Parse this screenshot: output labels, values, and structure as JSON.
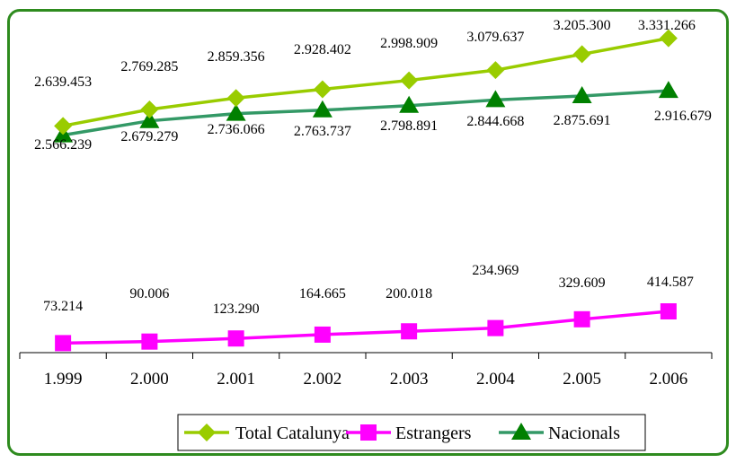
{
  "chart_data": {
    "type": "line",
    "categories": [
      "1.999",
      "2.000",
      "2.001",
      "2.002",
      "2.003",
      "2.004",
      "2.005",
      "2.006"
    ],
    "series": [
      {
        "name": "Total Catalunya",
        "color": "#99cc00",
        "marker": "diamond",
        "values": [
          2639453,
          2769285,
          2859356,
          2928402,
          2998909,
          3079637,
          3205300,
          3331266
        ],
        "labels": [
          "2.639.453",
          "2.769.285",
          "2.859.356",
          "2.928.402",
          "2.998.909",
          "3.079.637",
          "3.205.300",
          "3.331.266"
        ]
      },
      {
        "name": "Estrangers",
        "color": "#ff00ff",
        "marker": "square",
        "values": [
          73214,
          90006,
          123290,
          164665,
          200018,
          234969,
          329609,
          414587
        ],
        "labels": [
          "73.214",
          "90.006",
          "123.290",
          "164.665",
          "200.018",
          "234.969",
          "329.609",
          "414.587"
        ]
      },
      {
        "name": "Nacionals",
        "color": "#339966",
        "markerColor": "#008000",
        "marker": "triangle",
        "values": [
          2566239,
          2679279,
          2736066,
          2763737,
          2798891,
          2844668,
          2875691,
          2916679
        ],
        "labels": [
          "2.566.239",
          "2.679.279",
          "2.736.066",
          "2.763.737",
          "2.798.891",
          "2.844.668",
          "2.875.691",
          "2.916.679"
        ]
      }
    ],
    "title": "",
    "xlabel": "",
    "ylabel": "",
    "ylim": [
      0,
      3500000
    ],
    "grid": false,
    "legend": "bottom"
  }
}
